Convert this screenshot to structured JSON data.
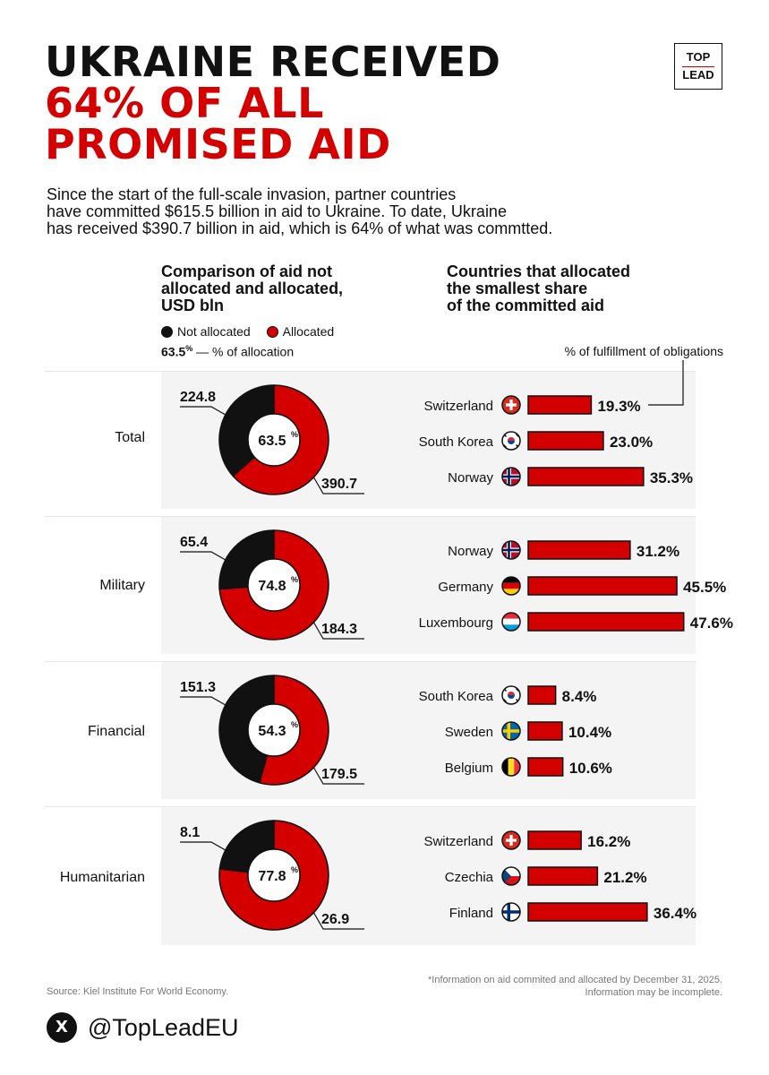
{
  "title": {
    "line1": "UKRAINE RECEIVED",
    "line2": "64% OF ALL",
    "line3": "PROMISED AID"
  },
  "logo": {
    "top": "TOP",
    "bottom": "LEAD"
  },
  "subtitle": {
    "line1": "Since the start of the full-scale invasion, partner countries",
    "line2": "have committed $615.5 billion in aid to Ukraine. To date, Ukraine",
    "line3": "has received $390.7 billion in aid, which is 64% of what was commtted."
  },
  "left_header": {
    "line1": "Comparison of aid not",
    "line2": "allocated and allocated,",
    "line3": "USD bln"
  },
  "legend": {
    "not_allocated": "Not allocated",
    "allocated": "Allocated",
    "pct_sample": "63.5",
    "pct_sample_sup": "%",
    "pct_label": "— % of allocation"
  },
  "right_header": {
    "line1": "Countries that allocated",
    "line2": "the smallest share",
    "line3": "of the committed aid"
  },
  "fulfillment_label": "% of fulfillment of obligations",
  "colors": {
    "red": "#d40000",
    "black": "#111111",
    "bg": "#f4f4f4"
  },
  "chart_data": [
    {
      "type": "pie",
      "category": "Total",
      "title": "Comparison of aid not allocated and allocated, USD bln",
      "not_allocated": 224.8,
      "allocated": 390.7,
      "pct_label": "63.5",
      "pct": 63.5,
      "bars": {
        "type": "bar",
        "xlabel": "% of fulfillment of obligations",
        "countries": [
          "Switzerland",
          "South Korea",
          "Norway"
        ],
        "values": [
          19.3,
          23.0,
          35.3
        ],
        "labels": [
          "19.3%",
          "23.0%",
          "35.3%"
        ],
        "flags": [
          "switzerland",
          "south-korea",
          "norway"
        ]
      }
    },
    {
      "type": "pie",
      "category": "Military",
      "not_allocated": 65.4,
      "allocated": 184.3,
      "pct_label": "74.8",
      "pct": 74.8,
      "bars": {
        "type": "bar",
        "countries": [
          "Norway",
          "Germany",
          "Luxembourg"
        ],
        "values": [
          31.2,
          45.5,
          47.6
        ],
        "labels": [
          "31.2%",
          "45.5%",
          "47.6%"
        ],
        "flags": [
          "norway",
          "germany",
          "luxembourg"
        ]
      }
    },
    {
      "type": "pie",
      "category": "Financial",
      "not_allocated": 151.3,
      "allocated": 179.5,
      "pct_label": "54.3",
      "pct": 54.3,
      "bars": {
        "type": "bar",
        "countries": [
          "South Korea",
          "Sweden",
          "Belgium"
        ],
        "values": [
          8.4,
          10.4,
          10.6
        ],
        "labels": [
          "8.4%",
          "10.4%",
          "10.6%"
        ],
        "flags": [
          "south-korea",
          "sweden",
          "belgium"
        ]
      }
    },
    {
      "type": "pie",
      "category": "Humanitarian",
      "not_allocated": 8.1,
      "allocated": 26.9,
      "pct_label": "77.8",
      "pct": 77.8,
      "bars": {
        "type": "bar",
        "countries": [
          "Switzerland",
          "Czechia",
          "Finland"
        ],
        "values": [
          16.2,
          21.2,
          36.4
        ],
        "labels": [
          "16.2%",
          "21.2%",
          "36.4%"
        ],
        "flags": [
          "switzerland",
          "czechia",
          "finland"
        ]
      }
    }
  ],
  "footer": {
    "source": "Source: Kiel Institute For World Economy.",
    "note_line1": "*Information on aid commited and allocated by December 31, 2025.",
    "note_line2": "Information may be incomplete.",
    "social_icon": "X",
    "handle": "@TopLeadEU"
  }
}
